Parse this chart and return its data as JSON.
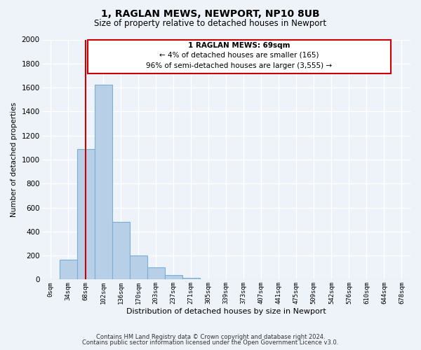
{
  "title": "1, RAGLAN MEWS, NEWPORT, NP10 8UB",
  "subtitle": "Size of property relative to detached houses in Newport",
  "xlabel": "Distribution of detached houses by size in Newport",
  "ylabel": "Number of detached properties",
  "bar_labels": [
    "0sqm",
    "34sqm",
    "68sqm",
    "102sqm",
    "136sqm",
    "170sqm",
    "203sqm",
    "237sqm",
    "271sqm",
    "305sqm",
    "339sqm",
    "373sqm",
    "407sqm",
    "441sqm",
    "475sqm",
    "509sqm",
    "542sqm",
    "576sqm",
    "610sqm",
    "644sqm",
    "678sqm"
  ],
  "bar_values": [
    0,
    165,
    1090,
    1625,
    480,
    200,
    100,
    35,
    15,
    0,
    0,
    0,
    0,
    0,
    0,
    0,
    0,
    0,
    0,
    0,
    0
  ],
  "bar_color": "#b8cfe8",
  "bar_edge_color": "#7aafd4",
  "marker_label_line1": "1 RAGLAN MEWS: 69sqm",
  "marker_label_line2": "← 4% of detached houses are smaller (165)",
  "marker_label_line3": "96% of semi-detached houses are larger (3,555) →",
  "marker_color": "#cc0000",
  "ylim": [
    0,
    2000
  ],
  "yticks": [
    0,
    200,
    400,
    600,
    800,
    1000,
    1200,
    1400,
    1600,
    1800,
    2000
  ],
  "footnote1": "Contains HM Land Registry data © Crown copyright and database right 2024.",
  "footnote2": "Contains public sector information licensed under the Open Government Licence v3.0.",
  "bg_color": "#eef2f9",
  "grid_color": "#ffffff",
  "box_color": "#cc0000"
}
